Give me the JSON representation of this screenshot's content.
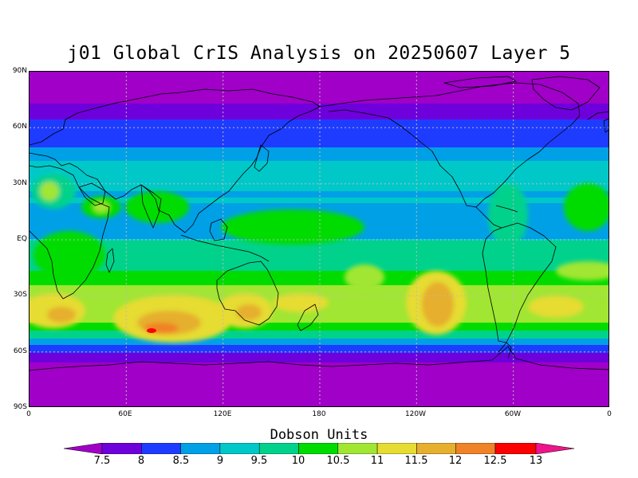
{
  "title": "j01 Global CrIS Analysis on 20250607 Layer 5",
  "colorbar_title": "Dobson Units",
  "lat_labels": [
    "90N",
    "60N",
    "30N",
    "EQ",
    "30S",
    "60S",
    "90S"
  ],
  "lon_labels": [
    "0",
    "60E",
    "120E",
    "180",
    "120W",
    "60W",
    "0"
  ],
  "colorbar": {
    "levels": [
      "7.5",
      "8",
      "8.5",
      "9",
      "9.5",
      "10",
      "10.5",
      "11",
      "11.5",
      "12",
      "12.5",
      "13"
    ],
    "colors": [
      "#a000c8",
      "#6e00dc",
      "#1e3cff",
      "#00a0e6",
      "#00c8c8",
      "#00d28c",
      "#00dc00",
      "#a0e632",
      "#e6dc32",
      "#e6af2d",
      "#f08228",
      "#fa0000",
      "#f0148c"
    ]
  }
}
